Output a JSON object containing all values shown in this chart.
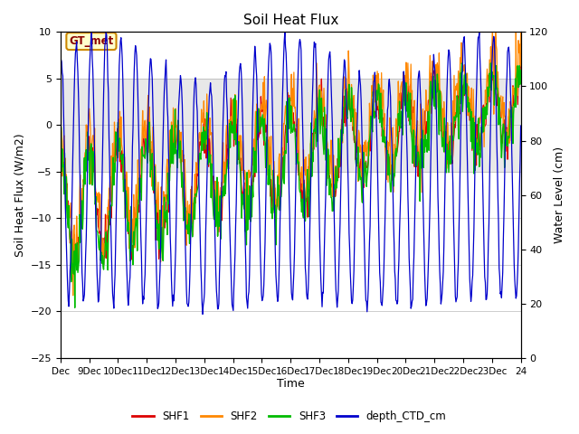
{
  "title": "Soil Heat Flux",
  "ylabel_left": "Soil Heat Flux (W/m2)",
  "ylabel_right": "Water Level (cm)",
  "xlabel": "Time",
  "ylim_left": [
    -25,
    10
  ],
  "ylim_right": [
    0,
    120
  ],
  "xtick_labels": [
    "Dec",
    "9Dec",
    "10Dec",
    "11Dec",
    "12Dec",
    "13Dec",
    "14Dec",
    "15Dec",
    "16Dec",
    "17Dec",
    "18Dec",
    "19Dec",
    "20Dec",
    "21Dec",
    "22Dec",
    "23Dec",
    "24"
  ],
  "shaded_region": [
    -5,
    5
  ],
  "gt_met_label": "GT_met",
  "line_colors": {
    "SHF1": "#dd0000",
    "SHF2": "#ff8800",
    "SHF3": "#00bb00",
    "depth_CTD_cm": "#0000cc"
  },
  "background_color": "#ffffff"
}
